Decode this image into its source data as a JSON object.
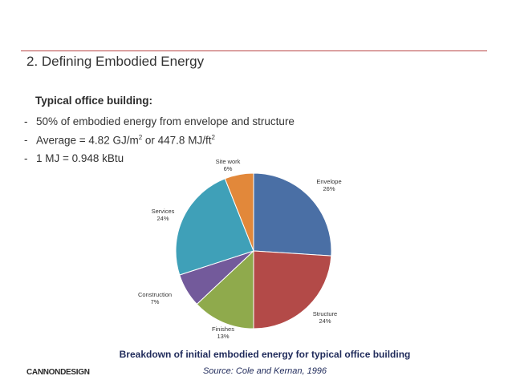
{
  "slide": {
    "title": "2.  Defining Embodied Energy",
    "subheading": "Typical office building:",
    "bullets": {
      "b1": "50% of embodied energy from envelope and structure",
      "b2_pre": "Average  =  4.82 GJ/m",
      "b2_sup1": "2",
      "b2_mid": " or 447.8 MJ/ft",
      "b2_sup2": "2",
      "b3": "1 MJ = 0.948 kBtu"
    },
    "caption": "Breakdown of initial embodied energy for typical office building",
    "source": "Source: Cole and Kernan, 1996",
    "logo": "CANNONDESIGN",
    "accent_color": "#b94545"
  },
  "chart_data": {
    "type": "pie",
    "title": "",
    "start": "12 o'clock, clockwise",
    "slices": [
      {
        "label": "Envelope",
        "value": 26,
        "value_label": "26%",
        "color": "#4a6fa5"
      },
      {
        "label": "Structure",
        "value": 24,
        "value_label": "24%",
        "color": "#b34a48"
      },
      {
        "label": "Finishes",
        "value": 13,
        "value_label": "13%",
        "color": "#8faa4c"
      },
      {
        "label": "Construction",
        "value": 7,
        "value_label": "7%",
        "color": "#735a9b"
      },
      {
        "label": "Services",
        "value": 24,
        "value_label": "24%",
        "color": "#3fa0b8"
      },
      {
        "label": "Site work",
        "value": 6,
        "value_label": "6%",
        "color": "#e2883a"
      }
    ]
  }
}
